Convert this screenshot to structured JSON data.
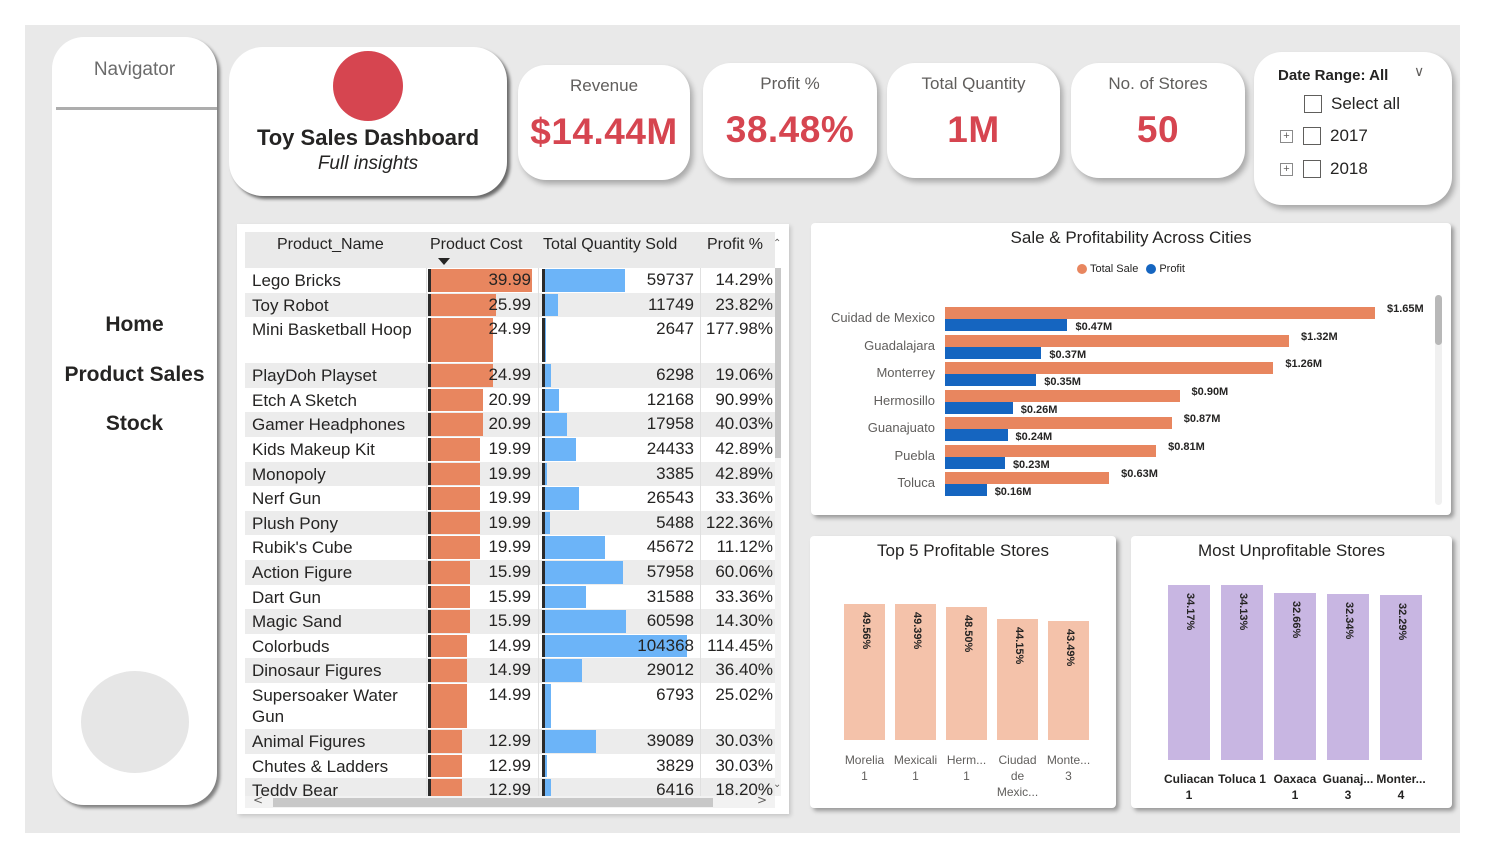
{
  "navigator": {
    "title": "Navigator",
    "items": [
      {
        "label": "Home"
      },
      {
        "label": "Product Sales"
      },
      {
        "label": "Stock"
      }
    ]
  },
  "header": {
    "title": "Toy Sales Dashboard",
    "subtitle": "Full insights",
    "logo_color": "#d64550"
  },
  "kpis": [
    {
      "label": "Revenue",
      "value": "$14.44M"
    },
    {
      "label": "Profit %",
      "value": "38.48%"
    },
    {
      "label": "Total Quantity",
      "value": "1M"
    },
    {
      "label": "No. of Stores",
      "value": "50"
    }
  ],
  "slicer": {
    "title": "Date Range: All",
    "chevron_icon": "chevron-down-icon",
    "options": [
      {
        "label": "Select all",
        "expandable": false,
        "checked": false
      },
      {
        "label": "2017",
        "expandable": true,
        "checked": false
      },
      {
        "label": "2018",
        "expandable": true,
        "checked": false
      }
    ]
  },
  "product_table": {
    "columns": [
      "Product_Name",
      "Product Cost",
      "Total Quantity Sold",
      "Profit %"
    ],
    "sorted_by": "Product Cost",
    "sort_direction": "descending",
    "cost_max": 39.99,
    "qty_max": 104368,
    "rows": [
      {
        "name": "Lego Bricks",
        "cost": 39.99,
        "qty": 59737,
        "profit": "14.29%"
      },
      {
        "name": "Toy Robot",
        "cost": 25.99,
        "qty": 11749,
        "profit": "23.82%"
      },
      {
        "name": "Mini Basketball Hoop",
        "cost": 24.99,
        "qty": 2647,
        "profit": "177.98%"
      },
      {
        "name": "PlayDoh Playset",
        "cost": 24.99,
        "qty": 6298,
        "profit": "19.06%"
      },
      {
        "name": "Etch A Sketch",
        "cost": 20.99,
        "qty": 12168,
        "profit": "90.99%"
      },
      {
        "name": "Gamer Headphones",
        "cost": 20.99,
        "qty": 17958,
        "profit": "40.03%"
      },
      {
        "name": "Kids Makeup Kit",
        "cost": 19.99,
        "qty": 24433,
        "profit": "42.89%"
      },
      {
        "name": "Monopoly",
        "cost": 19.99,
        "qty": 3385,
        "profit": "42.89%"
      },
      {
        "name": "Nerf Gun",
        "cost": 19.99,
        "qty": 26543,
        "profit": "33.36%"
      },
      {
        "name": "Plush Pony",
        "cost": 19.99,
        "qty": 5488,
        "profit": "122.36%"
      },
      {
        "name": "Rubik's Cube",
        "cost": 19.99,
        "qty": 45672,
        "profit": "11.12%"
      },
      {
        "name": "Action Figure",
        "cost": 15.99,
        "qty": 57958,
        "profit": "60.06%"
      },
      {
        "name": "Dart Gun",
        "cost": 15.99,
        "qty": 31588,
        "profit": "33.36%"
      },
      {
        "name": "Magic Sand",
        "cost": 15.99,
        "qty": 60598,
        "profit": "14.30%"
      },
      {
        "name": "Colorbuds",
        "cost": 14.99,
        "qty": 104368,
        "profit": "114.45%"
      },
      {
        "name": "Dinosaur Figures",
        "cost": 14.99,
        "qty": 29012,
        "profit": "36.40%"
      },
      {
        "name": "Supersoaker Water Gun",
        "cost": 14.99,
        "qty": 6793,
        "profit": "25.02%"
      },
      {
        "name": "Animal Figures",
        "cost": 12.99,
        "qty": 39089,
        "profit": "30.03%"
      },
      {
        "name": "Chutes & Ladders",
        "cost": 12.99,
        "qty": 3829,
        "profit": "30.03%"
      },
      {
        "name": "Teddy Bear",
        "cost": 12.99,
        "qty": 6416,
        "profit": "18.20%"
      }
    ],
    "bar_colors": {
      "cost": "#e8865f",
      "qty": "#6cb4f8"
    }
  },
  "chart_data": [
    {
      "type": "bar",
      "orientation": "horizontal",
      "title": "Sale & Profitability Across Cities",
      "legend": [
        "Total Sale",
        "Profit"
      ],
      "legend_position": "top-center",
      "categories": [
        "Cuidad de Mexico",
        "Guadalajara",
        "Monterrey",
        "Hermosillo",
        "Guanajuato",
        "Puebla",
        "Toluca"
      ],
      "series": [
        {
          "name": "Total Sale",
          "color": "#e8865f",
          "values": [
            1.65,
            1.32,
            1.26,
            0.9,
            0.87,
            0.81,
            0.63
          ],
          "labels": [
            "$1.65M",
            "$1.32M",
            "$1.26M",
            "$0.90M",
            "$0.87M",
            "$0.81M",
            "$0.63M"
          ]
        },
        {
          "name": "Profit",
          "color": "#1565c0",
          "values": [
            0.47,
            0.37,
            0.35,
            0.26,
            0.24,
            0.23,
            0.16
          ],
          "labels": [
            "$0.47M",
            "$0.37M",
            "$0.35M",
            "$0.26M",
            "$0.24M",
            "$0.23M",
            "$0.16M"
          ]
        }
      ],
      "unit": "$M",
      "xlim": [
        0,
        1.65
      ],
      "grid": false
    },
    {
      "type": "bar",
      "title": "Top 5 Profitable Stores",
      "categories": [
        "Morelia 1",
        "Mexicali 1",
        "Herm... 1",
        "Ciudad de Mexic...",
        "Monte... 3"
      ],
      "values": [
        49.56,
        49.39,
        48.5,
        44.15,
        43.49
      ],
      "labels": [
        "49.56%",
        "49.39%",
        "48.50%",
        "44.15%",
        "43.49%"
      ],
      "color": "#f4c2aa",
      "ylim": [
        0,
        49.56
      ],
      "grid": false
    },
    {
      "type": "bar",
      "title": "Most Unprofitable Stores",
      "categories": [
        "Culiacan 1",
        "Toluca 1",
        "Oaxaca 1",
        "Guanaj... 3",
        "Monter... 4"
      ],
      "values": [
        34.17,
        34.13,
        32.66,
        32.34,
        32.29
      ],
      "labels": [
        "34.17%",
        "34.13%",
        "32.66%",
        "32.34%",
        "32.29%"
      ],
      "color": "#c8b6e2",
      "ylim": [
        0,
        34.17
      ],
      "grid": false
    }
  ]
}
